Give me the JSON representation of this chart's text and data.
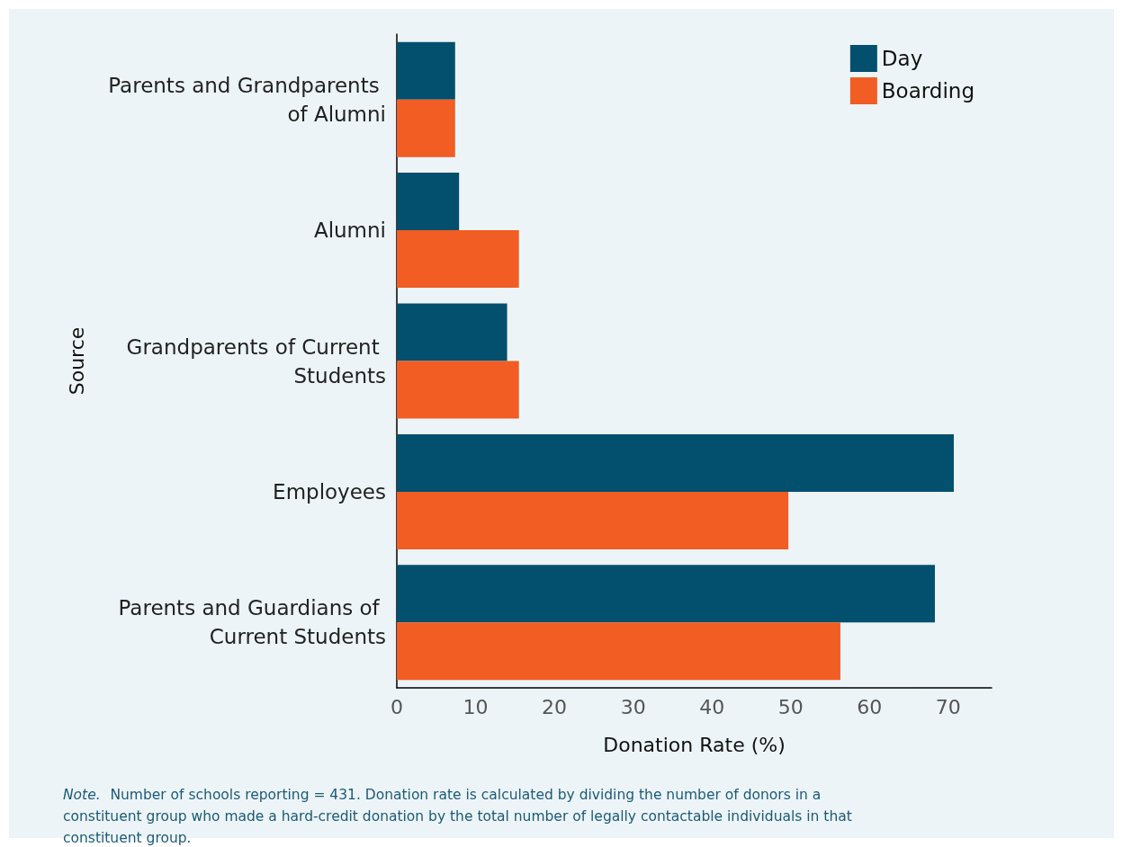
{
  "chart_data": {
    "type": "bar",
    "orientation": "horizontal",
    "categories": [
      "Parents and Grandparents of Alumni",
      "Alumni",
      "Grandparents of Current Students",
      "Employees",
      "Parents and Guardians of Current Students"
    ],
    "series": [
      {
        "name": "Day",
        "color": "#034f6e",
        "values": [
          7.4,
          7.9,
          14.0,
          70.7,
          68.3
        ]
      },
      {
        "name": "Boarding",
        "color": "#f15d22",
        "values": [
          7.4,
          15.5,
          15.5,
          49.7,
          56.3
        ]
      }
    ],
    "xlim": [
      0,
      75.5
    ],
    "xticks": [
      0,
      10,
      20,
      30,
      40,
      50,
      60,
      70
    ],
    "xlabel": "Donation Rate (%)",
    "ylabel": "Source",
    "grid": false,
    "legend": "top right",
    "annotations": [
      "Note. Number of schools reporting = 431. Donation rate is calculated by dividing the number of donors in a constituent group who made a hard-credit donation by the total number of legally contactable individuals in that constituent group."
    ]
  }
}
